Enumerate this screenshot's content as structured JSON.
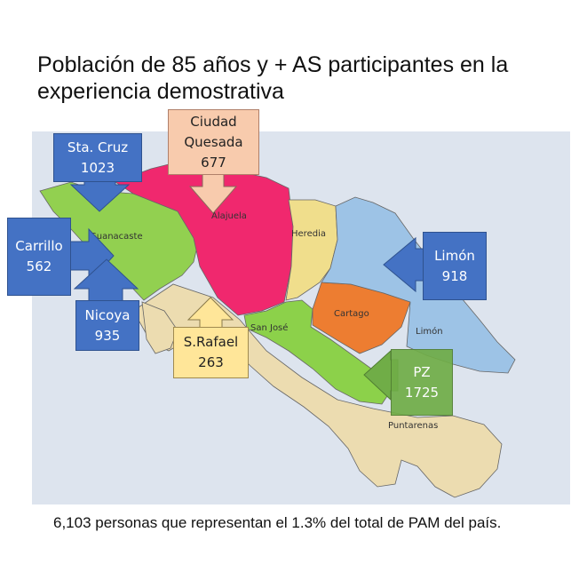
{
  "title": "Población de 85 años y + AS participantes en la experiencia demostrativa",
  "regions": {
    "guanacaste": "Guanacaste",
    "alajuela": "Alajuela",
    "heredia": "Heredia",
    "san_jose": "San José",
    "cartago": "Cartago",
    "limon": "Limón",
    "puntarenas": "Puntarenas"
  },
  "callouts": {
    "sta_cruz": {
      "name": "Sta. Cruz",
      "value": "1023"
    },
    "ciudad_quesada": {
      "name_line1": "Ciudad",
      "name_line2": "Quesada",
      "value": "677"
    },
    "carrillo": {
      "name": "Carrillo",
      "value": "562"
    },
    "nicoya": {
      "name": "Nicoya",
      "value": "935"
    },
    "s_rafael": {
      "name": "S.Rafael",
      "value": "263"
    },
    "limon": {
      "name": "Limón",
      "value": "918"
    },
    "pz": {
      "name": "PZ",
      "value": "1725"
    }
  },
  "colors": {
    "blue_box": "#4472c4",
    "peach_box": "#f8cbad",
    "cream_box": "#ffe699",
    "green_box": "#70ad47",
    "guanacaste": "#92d050",
    "alajuela": "#f0286e",
    "heredia": "#f0de8c",
    "san_jose": "#8cd14a",
    "cartago": "#ed7d31",
    "limon": "#9dc3e6",
    "puntarenas": "#ecdcb0"
  },
  "footer": "6,103 personas que representan el 1.3% del total de PAM del país."
}
